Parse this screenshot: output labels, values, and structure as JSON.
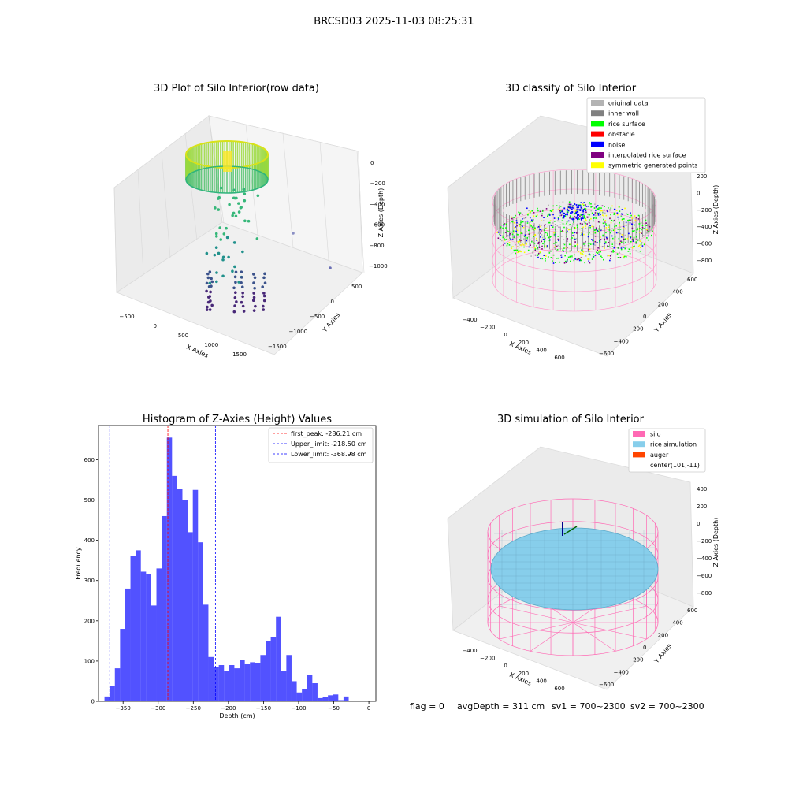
{
  "figure": {
    "suptitle": "BRCSD03 2025-11-03 08:25:31",
    "footer": {
      "flag": "flag = 0",
      "avg_depth": "avgDepth = 311 cm",
      "sv1": "sv1 = 700~2300",
      "sv2": "sv2 = 700~2300"
    }
  },
  "plot1": {
    "title": "3D Plot of Silo Interior(row data)",
    "xlabel": "X Axies",
    "ylabel": "Y Axies",
    "zlabel": "Z Axies (Depth)",
    "xticks": [
      "−500",
      "0",
      "500",
      "1000",
      "1500"
    ],
    "yticks": [
      "500",
      "0",
      "−500",
      "−1000",
      "−1500"
    ],
    "zticks": [
      "0",
      "−200",
      "−400",
      "−600",
      "−800",
      "−1000"
    ]
  },
  "plot2": {
    "title": "3D classify of Silo Interior",
    "xlabel": "X Axies",
    "ylabel": "Y Axies",
    "zlabel": "Z Axies (Depth)",
    "xticks": [
      "−400",
      "−200",
      "0",
      "200",
      "400",
      "600"
    ],
    "yticks": [
      "600",
      "400",
      "200",
      "0",
      "−200",
      "−400",
      "−600"
    ],
    "zticks": [
      "200",
      "0",
      "−200",
      "−400",
      "−600",
      "−800"
    ],
    "legend": [
      {
        "label": "original data",
        "color": "#b3b3b3"
      },
      {
        "label": "inner wall",
        "color": "#808080"
      },
      {
        "label": "rice surface",
        "color": "#00ff00"
      },
      {
        "label": "obstacle",
        "color": "#ff0000"
      },
      {
        "label": "noise",
        "color": "#0000ff"
      },
      {
        "label": "interpolated rice surface",
        "color": "#800080"
      },
      {
        "label": "symmetric generated points",
        "color": "#ffff00"
      }
    ]
  },
  "plot4": {
    "title": "3D simulation of Silo Interior",
    "xlabel": "X Axies",
    "ylabel": "Y Axies",
    "zlabel": "Z Axies (Depth)",
    "xticks": [
      "−400",
      "−200",
      "0",
      "200",
      "400",
      "600"
    ],
    "yticks": [
      "600",
      "400",
      "200",
      "0",
      "−200",
      "−400",
      "−600"
    ],
    "zticks": [
      "400",
      "200",
      "0",
      "−200",
      "−400",
      "−600",
      "−800"
    ],
    "legend": [
      {
        "label": "silo",
        "color": "#ff69b4"
      },
      {
        "label": "rice simulation",
        "color": "#87ceeb"
      },
      {
        "label": "auger",
        "color": "#ff4500"
      },
      {
        "label": "center(101,-11)",
        "color": ""
      }
    ]
  },
  "chart_data": [
    {
      "type": "bar",
      "title": "Histogram of Z-Axies (Height) Values",
      "xlabel": "Depth (cm)",
      "ylabel": "Frequency",
      "xlim": [
        -385,
        10
      ],
      "ylim": [
        0,
        685
      ],
      "bin_start": -376.5,
      "bin_width": 7.4,
      "xticks": [
        -350,
        -300,
        -250,
        -200,
        -150,
        -100,
        -50,
        0
      ],
      "xtick_labels": [
        "−350",
        "−300",
        "−250",
        "−200",
        "−150",
        "−100",
        "−50",
        "0"
      ],
      "yticks": [
        0,
        100,
        200,
        300,
        400,
        500,
        600
      ],
      "yticks_labels": [
        "0",
        "100",
        "200",
        "300",
        "400",
        "500",
        "600"
      ],
      "color": "#0000ff",
      "values": [
        12,
        38,
        82,
        180,
        280,
        362,
        375,
        322,
        316,
        238,
        330,
        460,
        655,
        560,
        528,
        500,
        420,
        525,
        395,
        240,
        110,
        85,
        90,
        75,
        90,
        82,
        103,
        92,
        97,
        95,
        115,
        150,
        160,
        210,
        75,
        115,
        50,
        22,
        30,
        66,
        45,
        8,
        10,
        15,
        17,
        3,
        12
      ],
      "vlines": [
        {
          "label": "first_peak: -286.21 cm",
          "x": -286.21,
          "color": "#ff0000"
        },
        {
          "label": "Upper_limit: -218.50 cm",
          "x": -218.5,
          "color": "#0000ff"
        },
        {
          "label": "Lower_limit: -368.98 cm",
          "x": -368.98,
          "color": "#0000ff"
        }
      ],
      "legend_position": "top-right"
    }
  ]
}
